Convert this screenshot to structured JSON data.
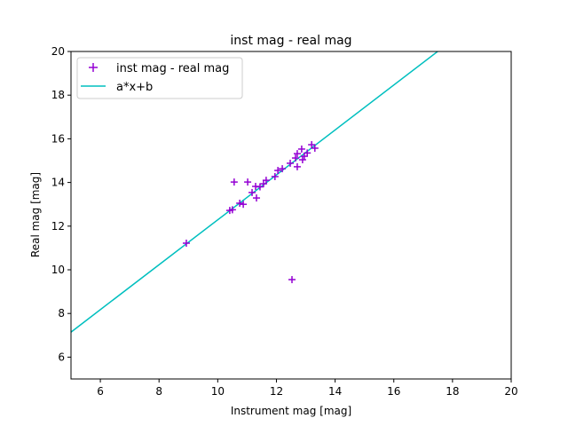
{
  "chart_data": {
    "type": "scatter",
    "title": "inst mag - real mag",
    "xlabel": "Instrument mag [mag]",
    "ylabel": "Real mag [mag]",
    "xlim": [
      5,
      20
    ],
    "ylim": [
      5,
      20
    ],
    "xticks": [
      6,
      8,
      10,
      12,
      14,
      16,
      18,
      20
    ],
    "yticks": [
      6,
      8,
      10,
      12,
      14,
      16,
      18,
      20
    ],
    "grid": false,
    "legend_position": "top-left",
    "series": [
      {
        "name": "inst mag - real mag",
        "type": "scatter",
        "marker": "+",
        "color": "#9400d3",
        "points": [
          [
            8.93,
            11.22
          ],
          [
            10.41,
            12.72
          ],
          [
            10.5,
            12.75
          ],
          [
            10.75,
            13.05
          ],
          [
            10.87,
            13.0
          ],
          [
            10.56,
            14.02
          ],
          [
            11.02,
            14.02
          ],
          [
            11.32,
            13.29
          ],
          [
            11.17,
            13.54
          ],
          [
            11.29,
            13.82
          ],
          [
            11.44,
            13.8
          ],
          [
            11.56,
            13.94
          ],
          [
            11.65,
            14.1
          ],
          [
            11.95,
            14.27
          ],
          [
            12.05,
            14.55
          ],
          [
            12.2,
            14.63
          ],
          [
            12.47,
            14.88
          ],
          [
            12.65,
            15.12
          ],
          [
            12.71,
            15.32
          ],
          [
            12.71,
            14.72
          ],
          [
            12.86,
            15.53
          ],
          [
            12.89,
            15.04
          ],
          [
            12.95,
            15.2
          ],
          [
            13.05,
            15.35
          ],
          [
            13.2,
            15.73
          ],
          [
            13.31,
            15.57
          ],
          [
            12.53,
            9.55
          ]
        ]
      },
      {
        "name": "a*x+b",
        "type": "line",
        "color": "#00bfbf",
        "slope": 1.029,
        "intercept": 2.0
      }
    ]
  }
}
